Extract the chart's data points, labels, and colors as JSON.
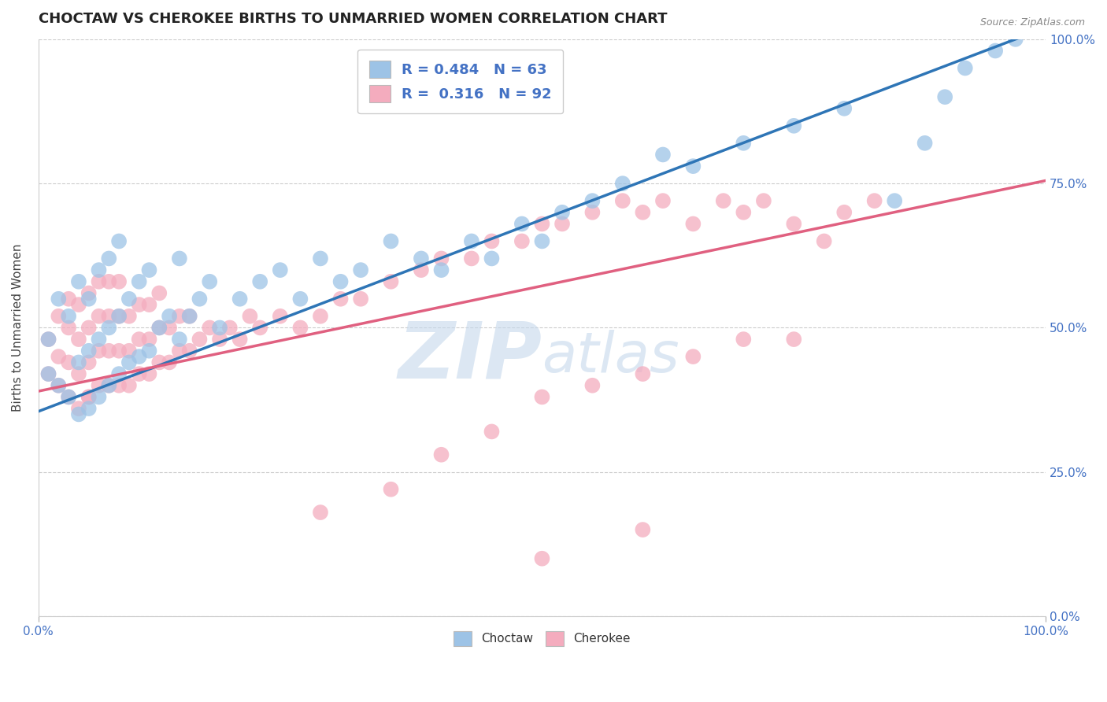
{
  "title": "CHOCTAW VS CHEROKEE BIRTHS TO UNMARRIED WOMEN CORRELATION CHART",
  "source_text": "Source: ZipAtlas.com",
  "ylabel": "Births to Unmarried Women",
  "xmin": 0.0,
  "xmax": 1.0,
  "ymin": 0.0,
  "ymax": 1.0,
  "choctaw_R": 0.484,
  "choctaw_N": 63,
  "cherokee_R": 0.316,
  "cherokee_N": 92,
  "choctaw_color": "#9DC3E6",
  "cherokee_color": "#F4ACBE",
  "choctaw_line_color": "#2E75B6",
  "cherokee_line_color": "#E06080",
  "watermark_zip_color": "#C5D8EC",
  "watermark_atlas_color": "#C5D8EC",
  "title_fontsize": 13,
  "axis_label_fontsize": 11,
  "tick_fontsize": 11,
  "legend_fontsize": 13,
  "ytick_labels": [
    "0.0%",
    "25.0%",
    "50.0%",
    "75.0%",
    "100.0%"
  ],
  "ytick_values": [
    0.0,
    0.25,
    0.5,
    0.75,
    1.0
  ],
  "choctaw_line_x0": 0.0,
  "choctaw_line_y0": 0.355,
  "choctaw_line_x1": 1.0,
  "choctaw_line_y1": 1.02,
  "cherokee_line_x0": 0.0,
  "cherokee_line_y0": 0.39,
  "cherokee_line_x1": 1.0,
  "cherokee_line_y1": 0.755,
  "choctaw_x": [
    0.01,
    0.01,
    0.02,
    0.02,
    0.03,
    0.03,
    0.04,
    0.04,
    0.04,
    0.05,
    0.05,
    0.05,
    0.06,
    0.06,
    0.06,
    0.07,
    0.07,
    0.07,
    0.08,
    0.08,
    0.08,
    0.09,
    0.09,
    0.1,
    0.1,
    0.11,
    0.11,
    0.12,
    0.13,
    0.14,
    0.14,
    0.15,
    0.16,
    0.17,
    0.18,
    0.2,
    0.22,
    0.24,
    0.26,
    0.28,
    0.3,
    0.32,
    0.35,
    0.38,
    0.4,
    0.43,
    0.45,
    0.48,
    0.5,
    0.52,
    0.55,
    0.58,
    0.62,
    0.65,
    0.7,
    0.75,
    0.8,
    0.85,
    0.88,
    0.9,
    0.92,
    0.95,
    0.97
  ],
  "choctaw_y": [
    0.42,
    0.48,
    0.4,
    0.55,
    0.38,
    0.52,
    0.35,
    0.44,
    0.58,
    0.36,
    0.46,
    0.55,
    0.38,
    0.48,
    0.6,
    0.4,
    0.5,
    0.62,
    0.42,
    0.52,
    0.65,
    0.44,
    0.55,
    0.45,
    0.58,
    0.46,
    0.6,
    0.5,
    0.52,
    0.48,
    0.62,
    0.52,
    0.55,
    0.58,
    0.5,
    0.55,
    0.58,
    0.6,
    0.55,
    0.62,
    0.58,
    0.6,
    0.65,
    0.62,
    0.6,
    0.65,
    0.62,
    0.68,
    0.65,
    0.7,
    0.72,
    0.75,
    0.8,
    0.78,
    0.82,
    0.85,
    0.88,
    0.72,
    0.82,
    0.9,
    0.95,
    0.98,
    1.0
  ],
  "cherokee_x": [
    0.01,
    0.01,
    0.02,
    0.02,
    0.02,
    0.03,
    0.03,
    0.03,
    0.03,
    0.04,
    0.04,
    0.04,
    0.04,
    0.05,
    0.05,
    0.05,
    0.05,
    0.05,
    0.06,
    0.06,
    0.06,
    0.06,
    0.07,
    0.07,
    0.07,
    0.07,
    0.08,
    0.08,
    0.08,
    0.08,
    0.09,
    0.09,
    0.09,
    0.1,
    0.1,
    0.1,
    0.11,
    0.11,
    0.11,
    0.12,
    0.12,
    0.12,
    0.13,
    0.13,
    0.14,
    0.14,
    0.15,
    0.15,
    0.16,
    0.17,
    0.18,
    0.19,
    0.2,
    0.21,
    0.22,
    0.24,
    0.26,
    0.28,
    0.3,
    0.32,
    0.35,
    0.38,
    0.4,
    0.43,
    0.45,
    0.48,
    0.5,
    0.52,
    0.55,
    0.58,
    0.6,
    0.62,
    0.65,
    0.68,
    0.7,
    0.72,
    0.75,
    0.78,
    0.8,
    0.83,
    0.28,
    0.35,
    0.4,
    0.45,
    0.5,
    0.55,
    0.6,
    0.65,
    0.7,
    0.75,
    0.5,
    0.6
  ],
  "cherokee_y": [
    0.42,
    0.48,
    0.4,
    0.45,
    0.52,
    0.38,
    0.44,
    0.5,
    0.55,
    0.36,
    0.42,
    0.48,
    0.54,
    0.38,
    0.44,
    0.5,
    0.56,
    0.38,
    0.4,
    0.46,
    0.52,
    0.58,
    0.4,
    0.46,
    0.52,
    0.58,
    0.4,
    0.46,
    0.52,
    0.58,
    0.4,
    0.46,
    0.52,
    0.42,
    0.48,
    0.54,
    0.42,
    0.48,
    0.54,
    0.44,
    0.5,
    0.56,
    0.44,
    0.5,
    0.46,
    0.52,
    0.46,
    0.52,
    0.48,
    0.5,
    0.48,
    0.5,
    0.48,
    0.52,
    0.5,
    0.52,
    0.5,
    0.52,
    0.55,
    0.55,
    0.58,
    0.6,
    0.62,
    0.62,
    0.65,
    0.65,
    0.68,
    0.68,
    0.7,
    0.72,
    0.7,
    0.72,
    0.68,
    0.72,
    0.7,
    0.72,
    0.68,
    0.65,
    0.7,
    0.72,
    0.18,
    0.22,
    0.28,
    0.32,
    0.38,
    0.4,
    0.42,
    0.45,
    0.48,
    0.48,
    0.1,
    0.15
  ]
}
